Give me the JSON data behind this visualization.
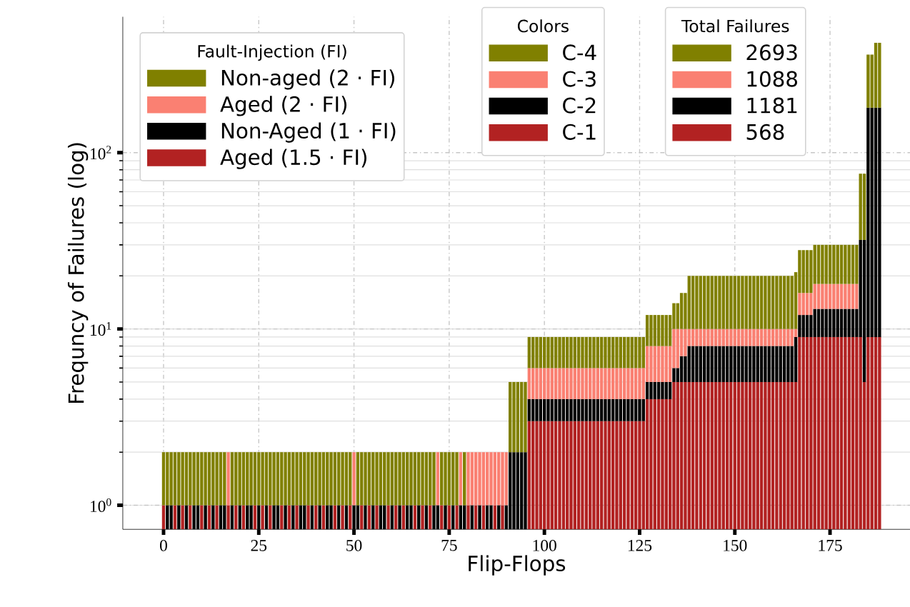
{
  "chart_data": {
    "type": "bar",
    "stacked": true,
    "xlabel": "Flip-Flops",
    "ylabel": "Frequncy of Failures (log)",
    "legend_title": "Fault-Injection (FI)",
    "legend": "top left",
    "log": true,
    "grid": true,
    "xlim": [
      -10.7,
      196
    ],
    "ylim": [
      0.73,
      590
    ],
    "xticks": [
      0,
      25,
      50,
      75,
      100,
      125,
      150,
      175
    ],
    "yticks": [
      {
        "value": 1,
        "label": "10$^{0}$"
      },
      {
        "value": 10,
        "label": "10$^{1}$"
      },
      {
        "value": 100,
        "label": "10$^{2}$"
      }
    ],
    "x": [
      0,
      1,
      2,
      3,
      4,
      5,
      6,
      7,
      8,
      9,
      10,
      11,
      12,
      13,
      14,
      15,
      16,
      17,
      18,
      19,
      20,
      21,
      22,
      23,
      24,
      25,
      26,
      27,
      28,
      29,
      30,
      31,
      32,
      33,
      34,
      35,
      36,
      37,
      38,
      39,
      40,
      41,
      42,
      43,
      44,
      45,
      46,
      47,
      48,
      49,
      50,
      51,
      52,
      53,
      54,
      55,
      56,
      57,
      58,
      59,
      60,
      61,
      62,
      63,
      64,
      65,
      66,
      67,
      68,
      69,
      70,
      71,
      72,
      73,
      74,
      75,
      76,
      77,
      78,
      79,
      80,
      81,
      82,
      83,
      84,
      85,
      86,
      87,
      88,
      89,
      90,
      91,
      92,
      93,
      94,
      95,
      96,
      97,
      98,
      99,
      100,
      101,
      102,
      103,
      104,
      105,
      106,
      107,
      108,
      109,
      110,
      111,
      112,
      113,
      114,
      115,
      116,
      117,
      118,
      119,
      120,
      121,
      122,
      123,
      124,
      125,
      126,
      127,
      128,
      129,
      130,
      131,
      132,
      133,
      134,
      135,
      136,
      137,
      138,
      139,
      140,
      141,
      142,
      143,
      144,
      145,
      146,
      147,
      148,
      149,
      150,
      151,
      152,
      153,
      154,
      155,
      156,
      157,
      158,
      159,
      160,
      161,
      162,
      163,
      164,
      165,
      166,
      167,
      168,
      169,
      170,
      171,
      172,
      173,
      174,
      175,
      176,
      177,
      178,
      179,
      180,
      181,
      182,
      183,
      184,
      185,
      186,
      187,
      188
    ],
    "series": [
      {
        "name": "Aged (1.5 · FI)",
        "color": "#b22222",
        "values": [
          1,
          null,
          null,
          1,
          null,
          1,
          null,
          1,
          null,
          null,
          1,
          null,
          1,
          null,
          1,
          null,
          null,
          1,
          null,
          1,
          null,
          1,
          null,
          null,
          1,
          null,
          1,
          null,
          1,
          null,
          null,
          1,
          null,
          1,
          null,
          1,
          null,
          null,
          1,
          null,
          1,
          null,
          1,
          null,
          null,
          1,
          null,
          1,
          null,
          1,
          null,
          null,
          1,
          null,
          1,
          null,
          1,
          null,
          null,
          1,
          null,
          1,
          null,
          1,
          null,
          null,
          1,
          null,
          1,
          null,
          1,
          null,
          null,
          1,
          null,
          1,
          null,
          1,
          null,
          null,
          1,
          null,
          1,
          null,
          1,
          null,
          null,
          1,
          null,
          1,
          null,
          null,
          null,
          null,
          null,
          null,
          3,
          3,
          3,
          3,
          3,
          3,
          3,
          3,
          3,
          3,
          3,
          3,
          3,
          3,
          3,
          3,
          3,
          3,
          3,
          3,
          3,
          3,
          3,
          3,
          3,
          3,
          3,
          3,
          3,
          3,
          3,
          4,
          4,
          4,
          4,
          4,
          4,
          4,
          5,
          5,
          5,
          5,
          5,
          5,
          5,
          5,
          5,
          5,
          5,
          5,
          5,
          5,
          5,
          5,
          5,
          5,
          5,
          5,
          5,
          5,
          5,
          5,
          5,
          5,
          5,
          5,
          5,
          5,
          5,
          5,
          5,
          9,
          9,
          9,
          9,
          9,
          9,
          9,
          9,
          9,
          9,
          9,
          9,
          9,
          9,
          9,
          9,
          9,
          5,
          9,
          9,
          9,
          9
        ]
      },
      {
        "name": "Non-Aged (1 · FI)",
        "color": "#000000",
        "values": [
          null,
          1,
          1,
          null,
          1,
          null,
          1,
          null,
          1,
          1,
          null,
          1,
          null,
          1,
          null,
          1,
          1,
          null,
          1,
          null,
          1,
          null,
          1,
          1,
          null,
          1,
          null,
          1,
          null,
          1,
          1,
          null,
          1,
          null,
          1,
          null,
          1,
          1,
          null,
          1,
          null,
          1,
          null,
          1,
          1,
          null,
          1,
          null,
          1,
          null,
          1,
          1,
          null,
          1,
          null,
          1,
          null,
          1,
          1,
          null,
          1,
          null,
          1,
          null,
          1,
          1,
          null,
          1,
          null,
          1,
          null,
          1,
          1,
          null,
          1,
          null,
          1,
          null,
          1,
          1,
          null,
          1,
          null,
          1,
          null,
          1,
          1,
          null,
          1,
          null,
          1,
          2,
          2,
          2,
          2,
          2,
          1,
          1,
          1,
          1,
          1,
          1,
          1,
          1,
          1,
          1,
          1,
          1,
          1,
          1,
          1,
          1,
          1,
          1,
          1,
          1,
          1,
          1,
          1,
          1,
          1,
          1,
          1,
          1,
          1,
          1,
          1,
          1,
          1,
          1,
          1,
          1,
          1,
          1,
          1,
          1,
          2,
          2,
          3,
          3,
          3,
          3,
          3,
          3,
          3,
          3,
          3,
          3,
          3,
          3,
          3,
          3,
          3,
          3,
          3,
          3,
          3,
          3,
          3,
          3,
          3,
          3,
          3,
          3,
          3,
          3,
          4,
          3,
          3,
          3,
          3,
          4,
          4,
          4,
          4,
          4,
          4,
          4,
          4,
          4,
          4,
          4,
          4,
          23,
          27,
          171,
          171,
          171,
          171
        ]
      },
      {
        "name": "Aged (2 · FI)",
        "color": "#fa8072",
        "values": [
          null,
          null,
          null,
          null,
          null,
          null,
          null,
          null,
          null,
          null,
          null,
          null,
          null,
          null,
          null,
          null,
          null,
          1,
          null,
          null,
          null,
          null,
          null,
          null,
          null,
          null,
          null,
          null,
          null,
          null,
          null,
          null,
          null,
          null,
          null,
          null,
          null,
          null,
          null,
          null,
          null,
          null,
          null,
          null,
          null,
          null,
          null,
          null,
          null,
          null,
          1,
          null,
          null,
          null,
          null,
          null,
          null,
          null,
          null,
          null,
          null,
          null,
          null,
          null,
          null,
          null,
          null,
          null,
          null,
          null,
          null,
          null,
          1,
          null,
          null,
          null,
          null,
          null,
          1,
          null,
          1,
          1,
          1,
          1,
          1,
          1,
          1,
          1,
          1,
          1,
          1,
          null,
          null,
          null,
          null,
          null,
          2,
          2,
          2,
          2,
          2,
          2,
          2,
          2,
          2,
          2,
          2,
          2,
          2,
          2,
          2,
          2,
          2,
          2,
          2,
          2,
          2,
          2,
          2,
          2,
          2,
          2,
          2,
          2,
          2,
          2,
          2,
          3,
          3,
          3,
          3,
          3,
          3,
          3,
          4,
          4,
          3,
          3,
          2,
          2,
          2,
          2,
          2,
          2,
          2,
          2,
          2,
          2,
          2,
          2,
          2,
          2,
          2,
          2,
          2,
          2,
          2,
          2,
          2,
          2,
          2,
          2,
          2,
          2,
          2,
          2,
          1,
          4,
          4,
          4,
          4,
          5,
          5,
          5,
          5,
          5,
          5,
          5,
          5,
          5,
          5,
          5,
          5,
          null,
          null,
          null,
          null,
          null,
          null
        ]
      },
      {
        "name": "Non-aged (2 · FI)",
        "color": "#808000",
        "values": [
          1,
          1,
          1,
          1,
          1,
          1,
          1,
          1,
          1,
          1,
          1,
          1,
          1,
          1,
          1,
          1,
          1,
          null,
          1,
          1,
          1,
          1,
          1,
          1,
          1,
          1,
          1,
          1,
          1,
          1,
          1,
          1,
          1,
          1,
          1,
          1,
          1,
          1,
          1,
          1,
          1,
          1,
          1,
          1,
          1,
          1,
          1,
          1,
          1,
          1,
          null,
          1,
          1,
          1,
          1,
          1,
          1,
          1,
          1,
          1,
          1,
          1,
          1,
          1,
          1,
          1,
          1,
          1,
          1,
          1,
          1,
          1,
          null,
          1,
          1,
          1,
          1,
          1,
          null,
          1,
          null,
          null,
          null,
          null,
          null,
          null,
          null,
          null,
          null,
          null,
          null,
          3,
          3,
          3,
          3,
          3,
          3,
          3,
          3,
          3,
          3,
          3,
          3,
          3,
          3,
          3,
          3,
          3,
          3,
          3,
          3,
          3,
          3,
          3,
          3,
          3,
          3,
          3,
          3,
          3,
          3,
          3,
          3,
          3,
          3,
          3,
          3,
          4,
          4,
          4,
          4,
          4,
          4,
          4,
          4,
          4,
          6,
          6,
          10,
          10,
          10,
          10,
          10,
          10,
          10,
          10,
          10,
          10,
          10,
          10,
          10,
          10,
          10,
          10,
          10,
          10,
          10,
          10,
          10,
          10,
          10,
          10,
          10,
          10,
          10,
          10,
          11,
          12,
          12,
          12,
          12,
          12,
          12,
          12,
          12,
          12,
          12,
          12,
          12,
          12,
          12,
          12,
          12,
          44,
          44,
          180,
          180,
          240,
          240
        ]
      }
    ],
    "annotations": [
      "Colors",
      "C-4",
      "C-3",
      "C-2",
      "C-1",
      "Total Failures",
      "2693",
      "1088",
      "1181",
      "568"
    ]
  }
}
